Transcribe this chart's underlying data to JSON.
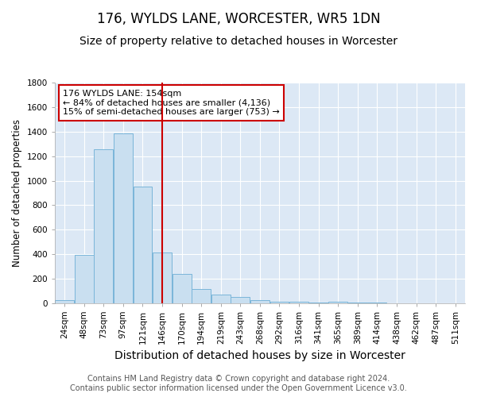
{
  "title": "176, WYLDS LANE, WORCESTER, WR5 1DN",
  "subtitle": "Size of property relative to detached houses in Worcester",
  "xlabel": "Distribution of detached houses by size in Worcester",
  "ylabel": "Number of detached properties",
  "categories": [
    "24sqm",
    "48sqm",
    "73sqm",
    "97sqm",
    "121sqm",
    "146sqm",
    "170sqm",
    "194sqm",
    "219sqm",
    "243sqm",
    "268sqm",
    "292sqm",
    "316sqm",
    "341sqm",
    "365sqm",
    "389sqm",
    "414sqm",
    "438sqm",
    "462sqm",
    "487sqm",
    "511sqm"
  ],
  "values": [
    25,
    390,
    1255,
    1390,
    950,
    415,
    235,
    115,
    70,
    50,
    20,
    8,
    8,
    3,
    12,
    3,
    3,
    0,
    0,
    0,
    0
  ],
  "bar_color": "#c9dff0",
  "bar_edge_color": "#7ab5d9",
  "vline_x": 5.0,
  "vline_color": "#cc0000",
  "annotation_line1": "176 WYLDS LANE: 154sqm",
  "annotation_line2": "← 84% of detached houses are smaller (4,136)",
  "annotation_line3": "15% of semi-detached houses are larger (753) →",
  "annotation_box_color": "#ffffff",
  "annotation_box_edge": "#cc0000",
  "ylim": [
    0,
    1800
  ],
  "yticks": [
    0,
    200,
    400,
    600,
    800,
    1000,
    1200,
    1400,
    1600,
    1800
  ],
  "footer_line1": "Contains HM Land Registry data © Crown copyright and database right 2024.",
  "footer_line2": "Contains public sector information licensed under the Open Government Licence v3.0.",
  "fig_background_color": "#ffffff",
  "plot_background_color": "#dce8f5",
  "grid_color": "#ffffff",
  "title_fontsize": 12,
  "subtitle_fontsize": 10,
  "xlabel_fontsize": 10,
  "ylabel_fontsize": 8.5,
  "tick_fontsize": 7.5,
  "annotation_fontsize": 8,
  "footer_fontsize": 7
}
